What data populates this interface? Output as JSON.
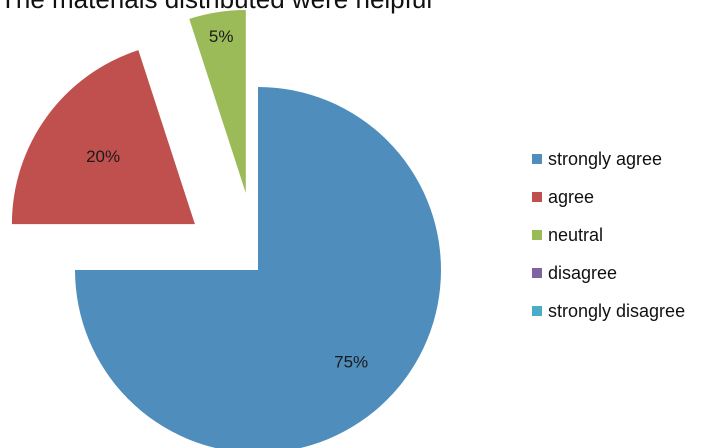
{
  "chart_data": {
    "type": "pie",
    "title": "The materials distributed were helpful",
    "series": [
      {
        "name": "strongly agree",
        "value": 75,
        "label": "75%",
        "color": "#4F8DBD"
      },
      {
        "name": "agree",
        "value": 20,
        "label": "20%",
        "color": "#C0504D"
      },
      {
        "name": "neutral",
        "value": 5,
        "label": "5%",
        "color": "#9BBB59"
      },
      {
        "name": "disagree",
        "value": 0,
        "label": "",
        "color": "#8064A2"
      },
      {
        "name": "strongly disagree",
        "value": 0,
        "label": "",
        "color": "#4BACC6"
      }
    ],
    "exploded": true,
    "legend": "right"
  }
}
